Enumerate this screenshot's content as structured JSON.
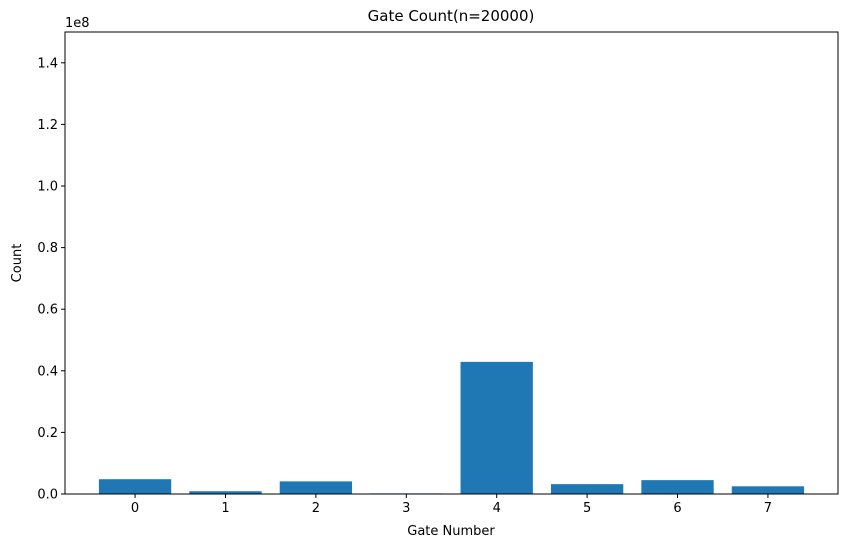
{
  "chart_data": {
    "type": "bar",
    "title": "Gate Count(n=20000)",
    "xlabel": "Gate Number",
    "ylabel": "Count",
    "offset_label": "1e8",
    "scale_factor": 100000000,
    "categories": [
      "0",
      "1",
      "2",
      "3",
      "4",
      "5",
      "6",
      "7"
    ],
    "values": [
      4800000,
      900000,
      4100000,
      200000,
      42900000,
      3200000,
      4500000,
      2500000
    ],
    "ylim": [
      0,
      150000000
    ],
    "yticks": [
      0,
      20000000,
      40000000,
      60000000,
      80000000,
      100000000,
      120000000,
      140000000
    ],
    "ytick_labels": [
      "0.0",
      "0.2",
      "0.4",
      "0.6",
      "0.8",
      "1.0",
      "1.2",
      "1.4"
    ],
    "bar_color": "#1f77b4",
    "grid": false,
    "legend": "none"
  }
}
